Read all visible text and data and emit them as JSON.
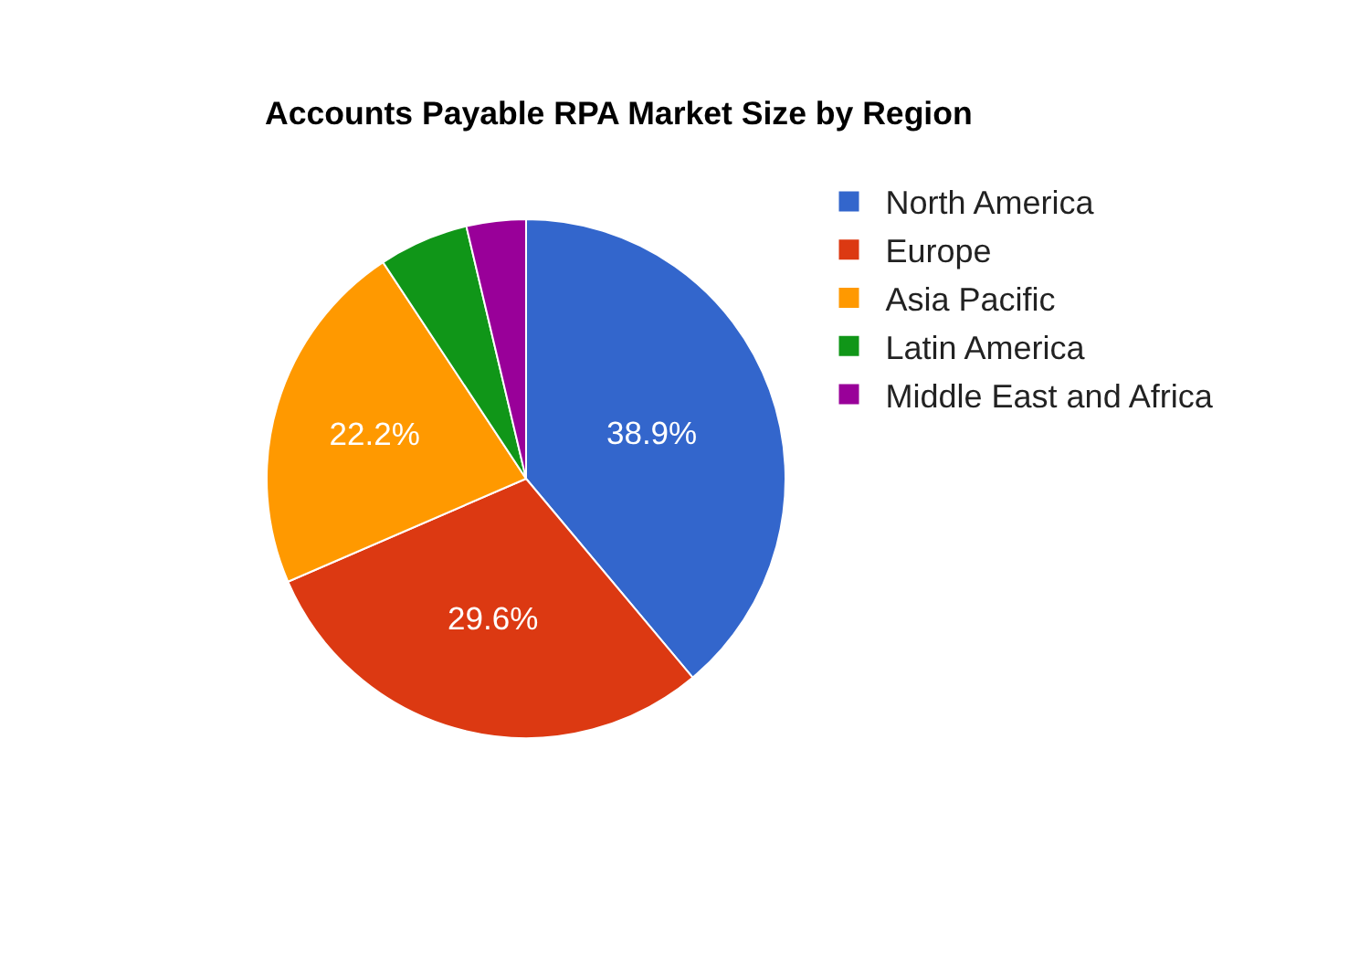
{
  "chart_data": {
    "type": "pie",
    "title": "Accounts Payable RPA Market Size by Region",
    "categories": [
      "North America",
      "Europe",
      "Asia Pacific",
      "Latin America",
      "Middle East and Africa"
    ],
    "values": [
      38.9,
      29.6,
      22.2,
      5.6,
      3.7
    ],
    "colors": [
      "#3366cc",
      "#dc3912",
      "#ff9900",
      "#109618",
      "#990099"
    ],
    "value_labels": [
      "38.9%",
      "29.6%",
      "22.2%",
      null,
      null
    ],
    "legend": "right"
  }
}
